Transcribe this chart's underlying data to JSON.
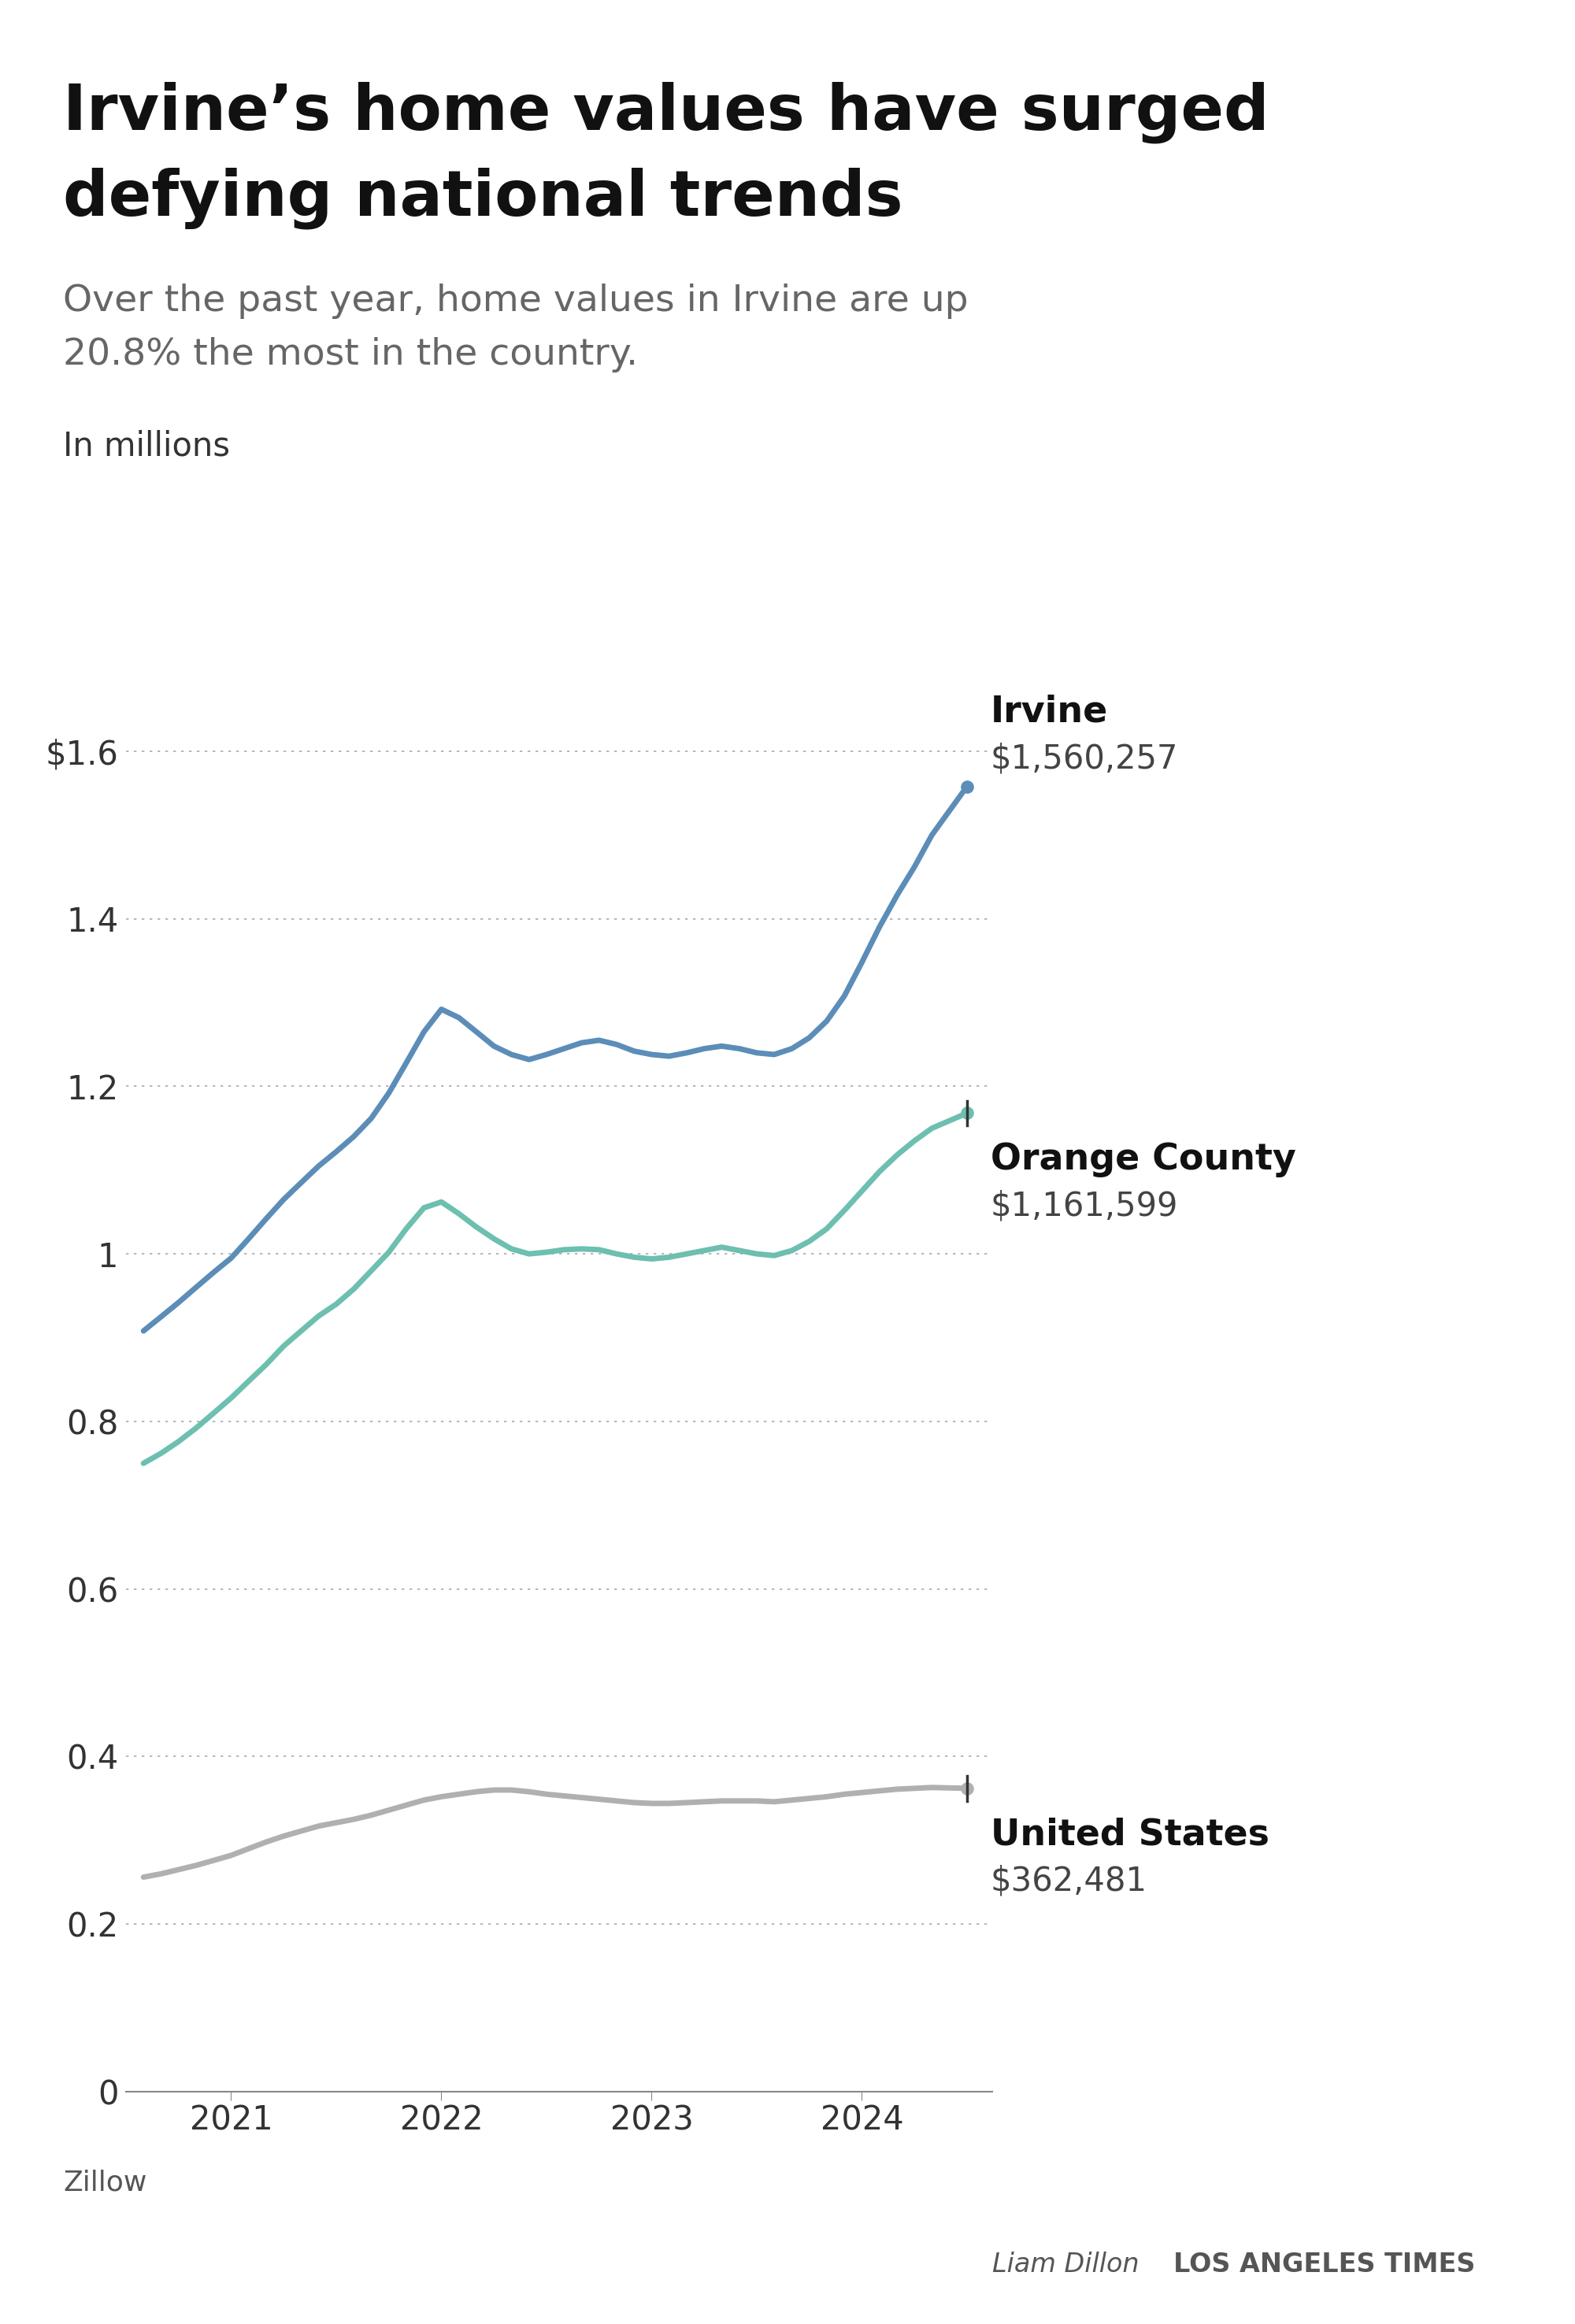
{
  "title_line1": "Irvine’s home values have surged",
  "title_line2": "defying national trends",
  "subtitle_line1": "Over the past year, home values in Irvine are up",
  "subtitle_line2": "20.8% the most in the country.",
  "ylabel": "In millions",
  "source": "Zillow",
  "byline_name": "Liam Dillon",
  "byline_org": "LOS ANGELES TIMES",
  "background_color": "#ffffff",
  "irvine_label": "Irvine",
  "irvine_value": "$1,560,257",
  "oc_label": "Orange County",
  "oc_value": "$1,161,599",
  "us_label": "United States",
  "us_value": "$362,481",
  "irvine_color": "#5b8db8",
  "oc_color": "#6dbfb0",
  "us_color": "#b0b0b0",
  "x_dates": [
    2020.583,
    2020.667,
    2020.75,
    2020.833,
    2020.917,
    2021.0,
    2021.083,
    2021.167,
    2021.25,
    2021.333,
    2021.417,
    2021.5,
    2021.583,
    2021.667,
    2021.75,
    2021.833,
    2021.917,
    2022.0,
    2022.083,
    2022.167,
    2022.25,
    2022.333,
    2022.417,
    2022.5,
    2022.583,
    2022.667,
    2022.75,
    2022.833,
    2022.917,
    2023.0,
    2023.083,
    2023.167,
    2023.25,
    2023.333,
    2023.417,
    2023.5,
    2023.583,
    2023.667,
    2023.75,
    2023.833,
    2023.917,
    2024.0,
    2024.083,
    2024.167,
    2024.25,
    2024.333,
    2024.5
  ],
  "irvine_y": [
    0.908,
    0.925,
    0.942,
    0.96,
    0.978,
    0.995,
    1.018,
    1.042,
    1.065,
    1.085,
    1.105,
    1.122,
    1.14,
    1.162,
    1.192,
    1.228,
    1.265,
    1.292,
    1.282,
    1.265,
    1.248,
    1.238,
    1.232,
    1.238,
    1.245,
    1.252,
    1.255,
    1.25,
    1.242,
    1.238,
    1.236,
    1.24,
    1.245,
    1.248,
    1.245,
    1.24,
    1.238,
    1.245,
    1.258,
    1.278,
    1.308,
    1.348,
    1.39,
    1.428,
    1.462,
    1.5,
    1.558
  ],
  "oc_y": [
    0.75,
    0.762,
    0.776,
    0.792,
    0.81,
    0.828,
    0.848,
    0.868,
    0.89,
    0.908,
    0.926,
    0.94,
    0.958,
    0.98,
    1.002,
    1.03,
    1.055,
    1.062,
    1.048,
    1.032,
    1.018,
    1.006,
    1.0,
    1.002,
    1.005,
    1.006,
    1.005,
    1.0,
    0.996,
    0.994,
    0.996,
    1.0,
    1.004,
    1.008,
    1.004,
    1.0,
    0.998,
    1.004,
    1.015,
    1.03,
    1.052,
    1.075,
    1.098,
    1.118,
    1.135,
    1.15,
    1.168
  ],
  "us_y": [
    0.256,
    0.26,
    0.265,
    0.27,
    0.276,
    0.282,
    0.29,
    0.298,
    0.305,
    0.311,
    0.317,
    0.321,
    0.325,
    0.33,
    0.336,
    0.342,
    0.348,
    0.352,
    0.355,
    0.358,
    0.36,
    0.36,
    0.358,
    0.355,
    0.353,
    0.351,
    0.349,
    0.347,
    0.345,
    0.344,
    0.344,
    0.345,
    0.346,
    0.347,
    0.347,
    0.347,
    0.346,
    0.348,
    0.35,
    0.352,
    0.355,
    0.357,
    0.359,
    0.361,
    0.362,
    0.363,
    0.362
  ],
  "yticks": [
    0,
    0.2,
    0.4,
    0.6,
    0.8,
    1.0,
    1.2,
    1.4,
    1.6
  ],
  "ytick_labels": [
    "0",
    "0.2",
    "0.4",
    "0.6",
    "0.8",
    "1",
    "1.2",
    "1.4",
    "$1.6"
  ],
  "xlim": [
    2020.5,
    2024.62
  ],
  "ylim": [
    0,
    1.72
  ],
  "xticks": [
    2021,
    2022,
    2023,
    2024
  ],
  "xtick_labels": [
    "2021",
    "2022",
    "2023",
    "2024"
  ]
}
